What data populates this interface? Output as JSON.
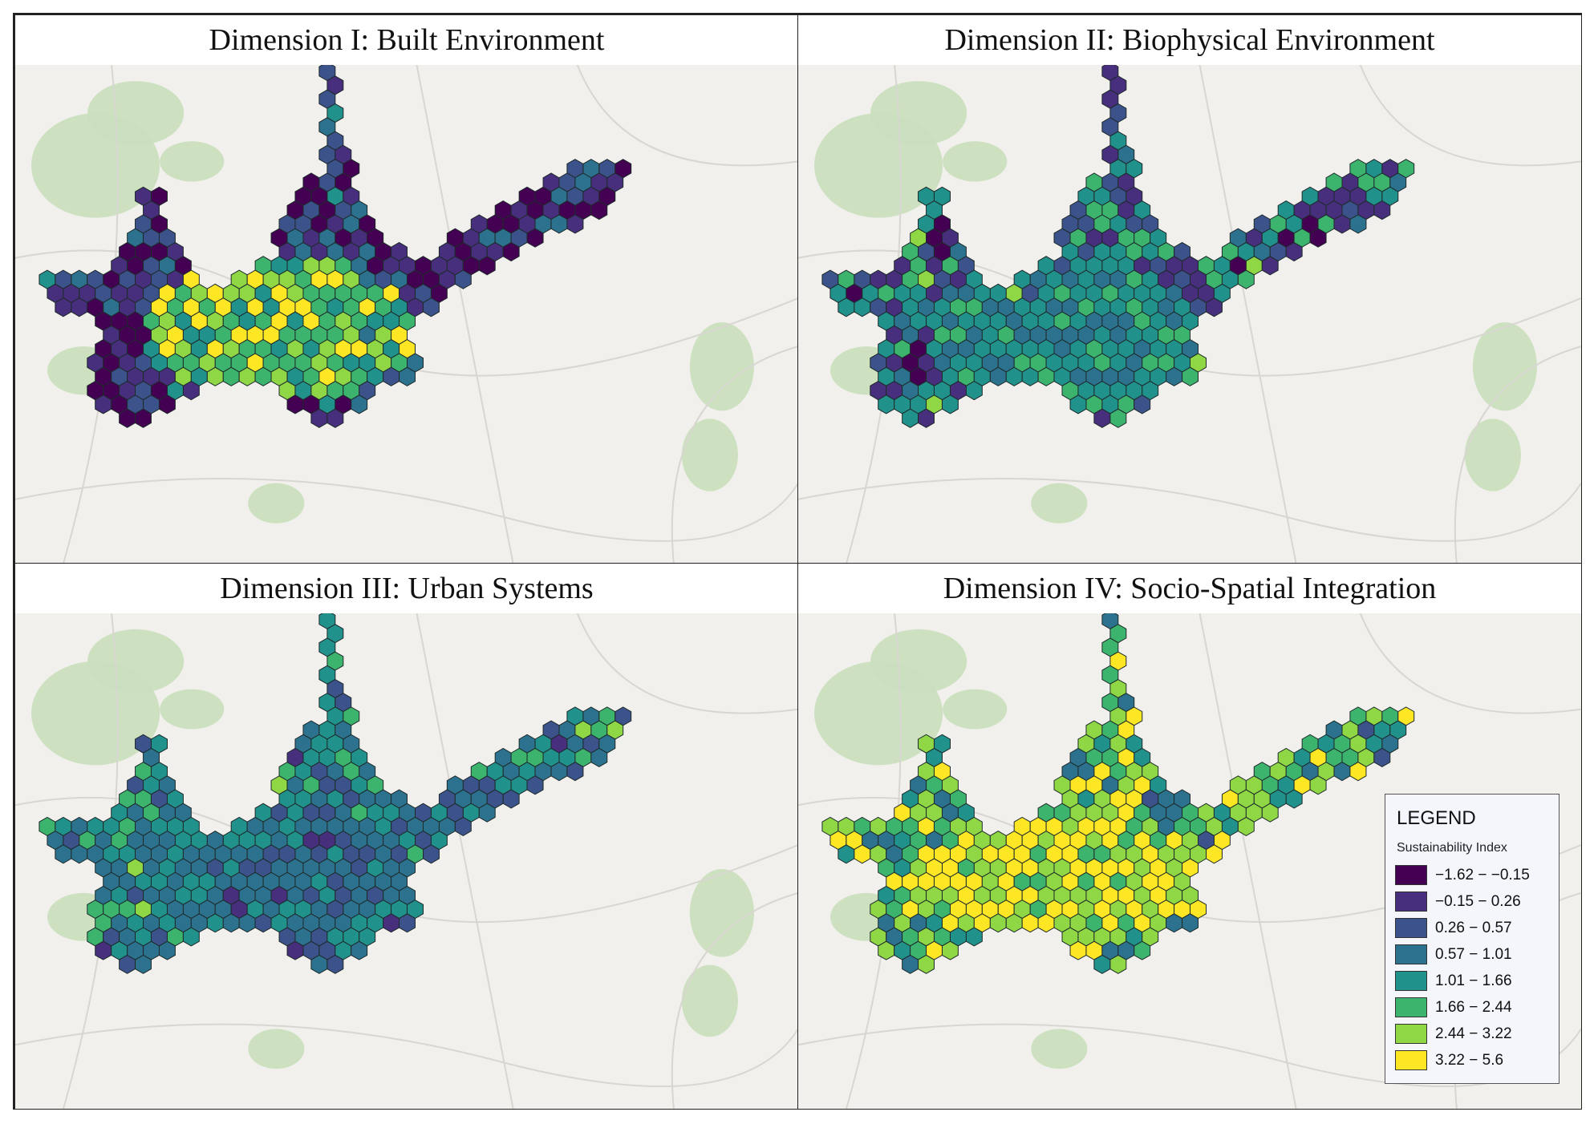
{
  "panels": [
    {
      "id": "p1",
      "title": "Dimension I: Built Environment",
      "palette_bias": "built"
    },
    {
      "id": "p2",
      "title": "Dimension II: Biophysical Environment",
      "palette_bias": "bio"
    },
    {
      "id": "p3",
      "title": "Dimension III: Urban Systems",
      "palette_bias": "urban"
    },
    {
      "id": "p4",
      "title": "Dimension IV: Socio-Spatial Integration",
      "palette_bias": "socio"
    }
  ],
  "legend": {
    "title": "LEGEND",
    "subtitle": "Sustainability Index",
    "classes": [
      {
        "label": "−1.62 − −0.15",
        "color": "#440154"
      },
      {
        "label": "−0.15 − 0.26",
        "color": "#472f7d"
      },
      {
        "label": "0.26 − 0.57",
        "color": "#3b528b"
      },
      {
        "label": "0.57 − 1.01",
        "color": "#2c728e"
      },
      {
        "label": "1.01 − 1.66",
        "color": "#21918c"
      },
      {
        "label": "1.66 − 2.44",
        "color": "#3cb46e"
      },
      {
        "label": "2.44 − 3.22",
        "color": "#8fd744"
      },
      {
        "label": "3.22 − 5.6",
        "color": "#fde725"
      }
    ]
  }
}
